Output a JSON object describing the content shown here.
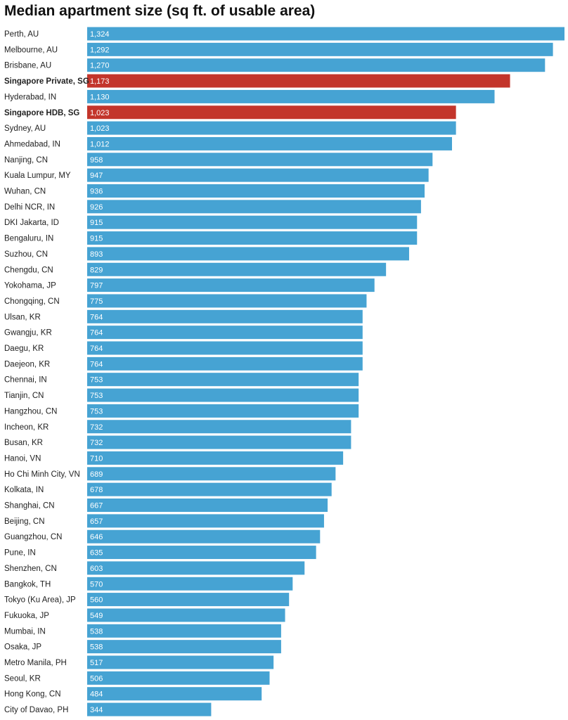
{
  "chart_data": {
    "type": "bar",
    "orientation": "horizontal",
    "title": "Median apartment size (sq ft. of usable area)",
    "xlabel": "",
    "ylabel": "",
    "xlim": [
      0,
      1324
    ],
    "colors": {
      "default": "#46a3d3",
      "highlight": "#c3352b"
    },
    "categories": [
      "Perth, AU",
      "Melbourne, AU",
      "Brisbane, AU",
      "Singapore Private, SG",
      "Hyderabad, IN",
      "Singapore HDB, SG",
      "Sydney, AU",
      "Ahmedabad, IN",
      "Nanjing, CN",
      "Kuala Lumpur, MY",
      "Wuhan, CN",
      "Delhi NCR, IN",
      "DKI Jakarta, ID",
      "Bengaluru, IN",
      "Suzhou, CN",
      "Chengdu, CN",
      "Yokohama, JP",
      "Chongqing, CN",
      "Ulsan, KR",
      "Gwangju, KR",
      "Daegu, KR",
      "Daejeon, KR",
      "Chennai, IN",
      "Tianjin, CN",
      "Hangzhou, CN",
      "Incheon, KR",
      "Busan, KR",
      "Hanoi, VN",
      "Ho Chi Minh City, VN",
      "Kolkata, IN",
      "Shanghai, CN",
      "Beijing, CN",
      "Guangzhou, CN",
      "Pune, IN",
      "Shenzhen, CN",
      "Bangkok, TH",
      "Tokyo (Ku Area), JP",
      "Fukuoka, JP",
      "Mumbai, IN",
      "Osaka, JP",
      "Metro Manila, PH",
      "Seoul, KR",
      "Hong Kong, CN",
      "City of Davao, PH"
    ],
    "values": [
      1324,
      1292,
      1270,
      1173,
      1130,
      1023,
      1023,
      1012,
      958,
      947,
      936,
      926,
      915,
      915,
      893,
      829,
      797,
      775,
      764,
      764,
      764,
      764,
      753,
      753,
      753,
      732,
      732,
      710,
      689,
      678,
      667,
      657,
      646,
      635,
      603,
      570,
      560,
      549,
      538,
      538,
      517,
      506,
      484,
      344
    ],
    "value_labels": [
      "1,324",
      "1,292",
      "1,270",
      "1,173",
      "1,130",
      "1,023",
      "1,023",
      "1,012",
      "958",
      "947",
      "936",
      "926",
      "915",
      "915",
      "893",
      "829",
      "797",
      "775",
      "764",
      "764",
      "764",
      "764",
      "753",
      "753",
      "753",
      "732",
      "732",
      "710",
      "689",
      "678",
      "667",
      "657",
      "646",
      "635",
      "603",
      "570",
      "560",
      "549",
      "538",
      "538",
      "517",
      "506",
      "484",
      "344"
    ],
    "highlighted": [
      "Singapore Private, SG",
      "Singapore HDB, SG"
    ]
  }
}
